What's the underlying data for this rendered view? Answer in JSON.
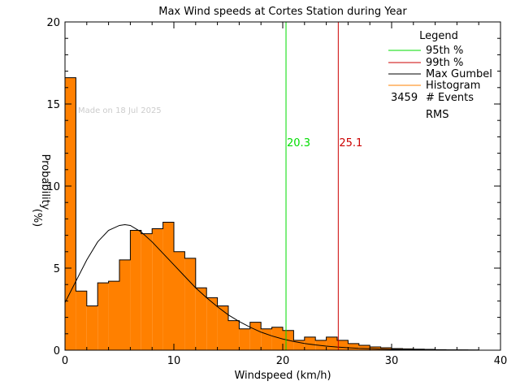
{
  "chart_data": {
    "type": "bar",
    "title": "Max Wind speeds at Cortes Station during Year",
    "xlabel": "Windspeed (km/h)",
    "ylabel": "Probability",
    "ylabel_unit": "(%)",
    "xlim": [
      0,
      40
    ],
    "ylim": [
      0,
      20
    ],
    "x_ticks": [
      "0",
      "10",
      "20",
      "30",
      "40"
    ],
    "y_ticks": [
      "0",
      "5",
      "10",
      "15",
      "20"
    ],
    "made_on": "Made on 18 Jul 2025",
    "bin_width": 1,
    "histogram": {
      "bin_starts": [
        0,
        1,
        2,
        3,
        4,
        5,
        6,
        7,
        8,
        9,
        10,
        11,
        12,
        13,
        14,
        15,
        16,
        17,
        18,
        19,
        20,
        21,
        22,
        23,
        24,
        25,
        26,
        27,
        28,
        29,
        30,
        31,
        32,
        33,
        34,
        35,
        36,
        37,
        38,
        39
      ],
      "values": [
        16.6,
        3.6,
        2.7,
        4.1,
        4.2,
        5.5,
        7.3,
        7.1,
        7.4,
        7.8,
        6.0,
        5.6,
        3.8,
        3.2,
        2.7,
        1.8,
        1.3,
        1.7,
        1.3,
        1.4,
        1.2,
        0.6,
        0.8,
        0.6,
        0.8,
        0.6,
        0.4,
        0.3,
        0.2,
        0.15,
        0.1,
        0.08,
        0.06,
        0.05,
        0.03,
        0.02,
        0.02,
        0.01,
        0.0,
        0.0
      ]
    },
    "gumbel": {
      "x": [
        0,
        1,
        2,
        3,
        4,
        5,
        5.5,
        6,
        7,
        8,
        9,
        10,
        11,
        12,
        13,
        14,
        15,
        16,
        17,
        18,
        19,
        20,
        21,
        22,
        23,
        24,
        25,
        26,
        27,
        28,
        29,
        30,
        32,
        34,
        36,
        38
      ],
      "y": [
        2.9,
        4.2,
        5.5,
        6.6,
        7.3,
        7.6,
        7.65,
        7.6,
        7.2,
        6.6,
        5.9,
        5.2,
        4.5,
        3.8,
        3.2,
        2.65,
        2.15,
        1.75,
        1.4,
        1.1,
        0.87,
        0.68,
        0.53,
        0.41,
        0.32,
        0.25,
        0.19,
        0.15,
        0.11,
        0.09,
        0.07,
        0.05,
        0.03,
        0.02,
        0.01,
        0.005
      ]
    },
    "percentiles": [
      {
        "label": "20.3",
        "value": 20.3,
        "color": "#00dd00"
      },
      {
        "label": "25.1",
        "value": 25.1,
        "color": "#cc0000"
      }
    ],
    "legend": {
      "title": "Legend",
      "position": "top-right",
      "items": [
        {
          "label": "95th %",
          "color": "#00dd00"
        },
        {
          "label": "99th %",
          "color": "#cc0000"
        },
        {
          "label": "Max Gumbel",
          "color": "#000000"
        },
        {
          "label": "Histogram",
          "color": "#ff8000"
        }
      ],
      "events_count": "3459",
      "events_label": "# Events",
      "rms_label": "RMS"
    },
    "colors": {
      "histogram_fill": "#ff8000",
      "histogram_edge": "#000000",
      "axes": "#000000"
    }
  }
}
